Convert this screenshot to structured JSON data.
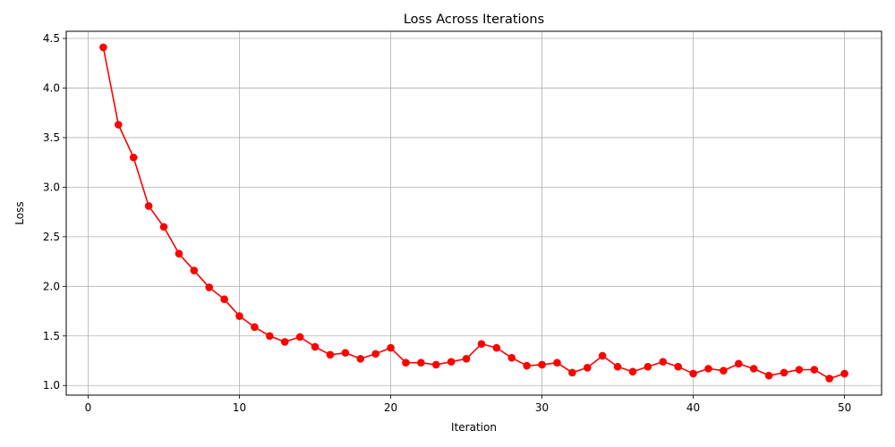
{
  "chart_data": {
    "type": "line",
    "title": "Loss Across Iterations",
    "xlabel": "Iteration",
    "ylabel": "Loss",
    "xlim": [
      -1.45,
      52.45
    ],
    "ylim": [
      0.903,
      4.572
    ],
    "xticks": [
      0,
      10,
      20,
      30,
      40,
      50
    ],
    "yticks": [
      1.0,
      1.5,
      2.0,
      2.5,
      3.0,
      3.5,
      4.0,
      4.5
    ],
    "grid": true,
    "legend": "none",
    "series": [
      {
        "color": "#ff0000",
        "marker": "circle",
        "x": [
          1,
          2,
          3,
          4,
          5,
          6,
          7,
          8,
          9,
          10,
          11,
          12,
          13,
          14,
          15,
          16,
          17,
          18,
          19,
          20,
          21,
          22,
          23,
          24,
          25,
          26,
          27,
          28,
          29,
          30,
          31,
          32,
          33,
          34,
          35,
          36,
          37,
          38,
          39,
          40,
          41,
          42,
          43,
          44,
          45,
          46,
          47,
          48,
          49,
          50
        ],
        "y": [
          4.41,
          3.63,
          3.3,
          2.81,
          2.6,
          2.33,
          2.16,
          1.99,
          1.87,
          1.7,
          1.59,
          1.5,
          1.44,
          1.49,
          1.39,
          1.31,
          1.33,
          1.27,
          1.32,
          1.38,
          1.23,
          1.23,
          1.21,
          1.24,
          1.27,
          1.42,
          1.38,
          1.28,
          1.2,
          1.21,
          1.23,
          1.13,
          1.18,
          1.3,
          1.19,
          1.14,
          1.19,
          1.24,
          1.19,
          1.12,
          1.17,
          1.15,
          1.22,
          1.17,
          1.1,
          1.13,
          1.16,
          1.16,
          1.07,
          1.12
        ]
      }
    ]
  }
}
